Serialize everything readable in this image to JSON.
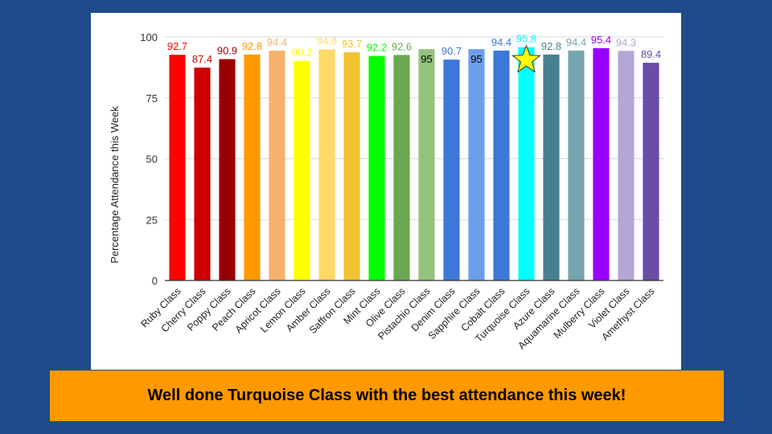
{
  "banner": {
    "text": "Well done Turquoise Class with the best attendance this week!"
  },
  "chart_data": {
    "type": "bar",
    "ylabel": "Percentage Attendance this Week",
    "xlabel": "",
    "ylim": [
      0,
      100
    ],
    "yticks": [
      0,
      25,
      50,
      75,
      100
    ],
    "grid": true,
    "categories": [
      "Ruby Class",
      "Cherry Class",
      "Poppy Class",
      "Peach Class",
      "Apricot Class",
      "Lemon Class",
      "Amber Class",
      "Saffron Class",
      "Mint Class",
      "Olive Class",
      "Pistachio Class",
      "Denim Class",
      "Sapphire Class",
      "Cobalt Class",
      "Turquoise Class",
      "Azure Class",
      "Aquamarine Class",
      "Mulberry Class",
      "Violet Class",
      "Amethyst Class"
    ],
    "values": [
      92.7,
      87.4,
      90.9,
      92.8,
      94.4,
      90.2,
      94.9,
      93.7,
      92.2,
      92.6,
      95,
      90.7,
      95,
      94.4,
      95.8,
      92.8,
      94.4,
      95.4,
      94.3,
      89.4
    ],
    "colors": [
      "#ff0000",
      "#cc0000",
      "#990000",
      "#ff9900",
      "#f6b26b",
      "#ffff00",
      "#ffd966",
      "#f1c232",
      "#00ff00",
      "#6aa84f",
      "#93c47d",
      "#3c78d8",
      "#6d9eeb",
      "#3c78d8",
      "#00ffff",
      "#45818e",
      "#76a5af",
      "#9900ff",
      "#b4a7d6",
      "#674ea7"
    ],
    "label_colors": [
      "#ff0000",
      "#cc0000",
      "#990000",
      "#ff9900",
      "#f6b26b",
      "#ffff00",
      "#ffd966",
      "#f1c232",
      "#00ff00",
      "#6aa84f",
      "#000000",
      "#3c78d8",
      "#000000",
      "#3c78d8",
      "#00ffff",
      "#45818e",
      "#76a5af",
      "#9900ff",
      "#b4a7d6",
      "#674ea7"
    ],
    "inside_label": [
      false,
      false,
      false,
      false,
      false,
      false,
      false,
      false,
      false,
      false,
      true,
      false,
      true,
      false,
      false,
      false,
      false,
      false,
      false,
      false
    ],
    "highlight": {
      "category": "Turquoise Class",
      "marker": "star-icon",
      "color": "#ffff00"
    }
  }
}
